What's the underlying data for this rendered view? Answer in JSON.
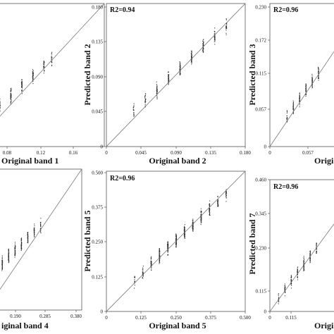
{
  "chart_data": [
    {
      "type": "scatter",
      "r2": "",
      "xlabel": "Original band 1",
      "ylabel": "",
      "xticks": [
        "0.08",
        "0.12",
        "0.16"
      ],
      "yticks": [],
      "xlim": [
        0.04,
        0.16
      ],
      "ylim": [
        0.04,
        0.16
      ],
      "one_to_one_line": true,
      "clusters": [
        {
          "x": 0.045,
          "y": 0.057,
          "n": 25
        },
        {
          "x": 0.055,
          "y": 0.066,
          "n": 35
        },
        {
          "x": 0.065,
          "y": 0.075,
          "n": 45
        },
        {
          "x": 0.075,
          "y": 0.084,
          "n": 50
        },
        {
          "x": 0.085,
          "y": 0.092,
          "n": 50
        },
        {
          "x": 0.095,
          "y": 0.1,
          "n": 45
        },
        {
          "x": 0.105,
          "y": 0.108,
          "n": 35
        },
        {
          "x": 0.112,
          "y": 0.114,
          "n": 20
        }
      ]
    },
    {
      "type": "scatter",
      "r2": "R2=0.94",
      "xlabel": "Original band 2",
      "ylabel": "Predicted band 2",
      "xticks": [
        "0",
        "0.045",
        "0.090",
        "0.135",
        "0.180"
      ],
      "yticks": [
        "0",
        "0.045",
        "0.090",
        "0.135",
        "0.180"
      ],
      "xlim": [
        0,
        0.18
      ],
      "ylim": [
        0,
        0.18
      ],
      "one_to_one_line": true,
      "clusters": [
        {
          "x": 0.035,
          "y": 0.045,
          "n": 20
        },
        {
          "x": 0.05,
          "y": 0.058,
          "n": 30
        },
        {
          "x": 0.065,
          "y": 0.071,
          "n": 40
        },
        {
          "x": 0.08,
          "y": 0.085,
          "n": 50
        },
        {
          "x": 0.095,
          "y": 0.098,
          "n": 55
        },
        {
          "x": 0.11,
          "y": 0.112,
          "n": 55
        },
        {
          "x": 0.125,
          "y": 0.126,
          "n": 50
        },
        {
          "x": 0.14,
          "y": 0.139,
          "n": 40
        },
        {
          "x": 0.155,
          "y": 0.152,
          "n": 25
        }
      ]
    },
    {
      "type": "scatter",
      "r2": "R2=0.96",
      "xlabel": "Origi",
      "ylabel": "Predicted band 3",
      "xticks": [
        "0",
        "0.057"
      ],
      "yticks": [
        "0",
        "0.057",
        "0.115",
        "0.172",
        "0.230"
      ],
      "xlim": [
        0,
        0.23
      ],
      "ylim": [
        0,
        0.23
      ],
      "one_to_one_line": true,
      "clusters": [
        {
          "x": 0.04,
          "y": 0.05,
          "n": 20
        },
        {
          "x": 0.055,
          "y": 0.064,
          "n": 30
        },
        {
          "x": 0.07,
          "y": 0.078,
          "n": 40
        },
        {
          "x": 0.085,
          "y": 0.092,
          "n": 45
        },
        {
          "x": 0.1,
          "y": 0.105,
          "n": 45
        },
        {
          "x": 0.115,
          "y": 0.118,
          "n": 35
        }
      ]
    },
    {
      "type": "scatter",
      "r2": "",
      "xlabel": "iginal band 4",
      "ylabel": "",
      "xticks": [
        "0.190",
        "0.285",
        "0.380"
      ],
      "yticks": [],
      "xlim": [
        0.08,
        0.38
      ],
      "ylim": [
        0.08,
        0.38
      ],
      "one_to_one_line": true,
      "clusters": [
        {
          "x": 0.09,
          "y": 0.15,
          "n": 35
        },
        {
          "x": 0.11,
          "y": 0.165,
          "n": 45
        },
        {
          "x": 0.13,
          "y": 0.18,
          "n": 50
        },
        {
          "x": 0.15,
          "y": 0.195,
          "n": 55
        },
        {
          "x": 0.17,
          "y": 0.21,
          "n": 55
        },
        {
          "x": 0.19,
          "y": 0.222,
          "n": 50
        },
        {
          "x": 0.21,
          "y": 0.235,
          "n": 45
        },
        {
          "x": 0.23,
          "y": 0.247,
          "n": 35
        },
        {
          "x": 0.25,
          "y": 0.258,
          "n": 25
        }
      ]
    },
    {
      "type": "scatter",
      "r2": "R2=0.96",
      "xlabel": "Original band 5",
      "ylabel": "Predicted band 5",
      "xticks": [
        "0",
        "0.125",
        "0.250",
        "0.375",
        "0.500"
      ],
      "yticks": [
        "0",
        "0.125",
        "0.250",
        "0.375",
        "0.500"
      ],
      "xlim": [
        0,
        0.5
      ],
      "ylim": [
        0,
        0.5
      ],
      "one_to_one_line": true,
      "clusters": [
        {
          "x": 0.1,
          "y": 0.11,
          "n": 15
        },
        {
          "x": 0.13,
          "y": 0.14,
          "n": 30
        },
        {
          "x": 0.16,
          "y": 0.17,
          "n": 45
        },
        {
          "x": 0.19,
          "y": 0.2,
          "n": 60
        },
        {
          "x": 0.22,
          "y": 0.228,
          "n": 70
        },
        {
          "x": 0.25,
          "y": 0.255,
          "n": 75
        },
        {
          "x": 0.28,
          "y": 0.283,
          "n": 75
        },
        {
          "x": 0.31,
          "y": 0.311,
          "n": 70
        },
        {
          "x": 0.34,
          "y": 0.338,
          "n": 60
        },
        {
          "x": 0.37,
          "y": 0.365,
          "n": 50
        },
        {
          "x": 0.4,
          "y": 0.392,
          "n": 35
        },
        {
          "x": 0.43,
          "y": 0.42,
          "n": 20
        }
      ]
    },
    {
      "type": "scatter",
      "r2": "R2=0.96",
      "xlabel": "Origi",
      "ylabel": "Predicted band 7",
      "xticks": [
        "0",
        "0.115"
      ],
      "yticks": [
        "0",
        "0.115",
        "0.230",
        "0.345",
        "0.460"
      ],
      "xlim": [
        0,
        0.46
      ],
      "ylim": [
        0,
        0.46
      ],
      "one_to_one_line": true,
      "clusters": [
        {
          "x": 0.04,
          "y": 0.05,
          "n": 15
        },
        {
          "x": 0.07,
          "y": 0.08,
          "n": 30
        },
        {
          "x": 0.1,
          "y": 0.108,
          "n": 40
        },
        {
          "x": 0.13,
          "y": 0.137,
          "n": 45
        },
        {
          "x": 0.16,
          "y": 0.165,
          "n": 45
        },
        {
          "x": 0.19,
          "y": 0.193,
          "n": 40
        },
        {
          "x": 0.22,
          "y": 0.222,
          "n": 30
        }
      ]
    }
  ]
}
